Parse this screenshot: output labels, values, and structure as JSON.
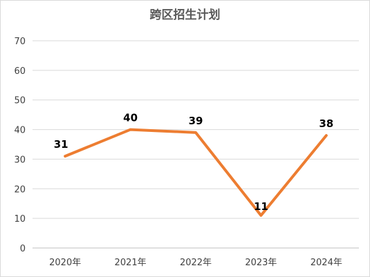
{
  "chart_data": {
    "type": "line",
    "title": "跨区招生计划",
    "categories": [
      "2020年",
      "2021年",
      "2022年",
      "2023年",
      "2024年"
    ],
    "series": [
      {
        "values": [
          31,
          40,
          39,
          11,
          38
        ]
      }
    ],
    "ylim": [
      0,
      70
    ],
    "yticks": [
      0,
      10,
      20,
      30,
      40,
      50,
      60,
      70
    ],
    "grid": true,
    "legend": "none",
    "data_labels": true,
    "xlabel": "",
    "ylabel": ""
  },
  "colors": {
    "line": "#ED7D31",
    "grid": "#d9d9d9",
    "axis": "#bfbfbf"
  }
}
